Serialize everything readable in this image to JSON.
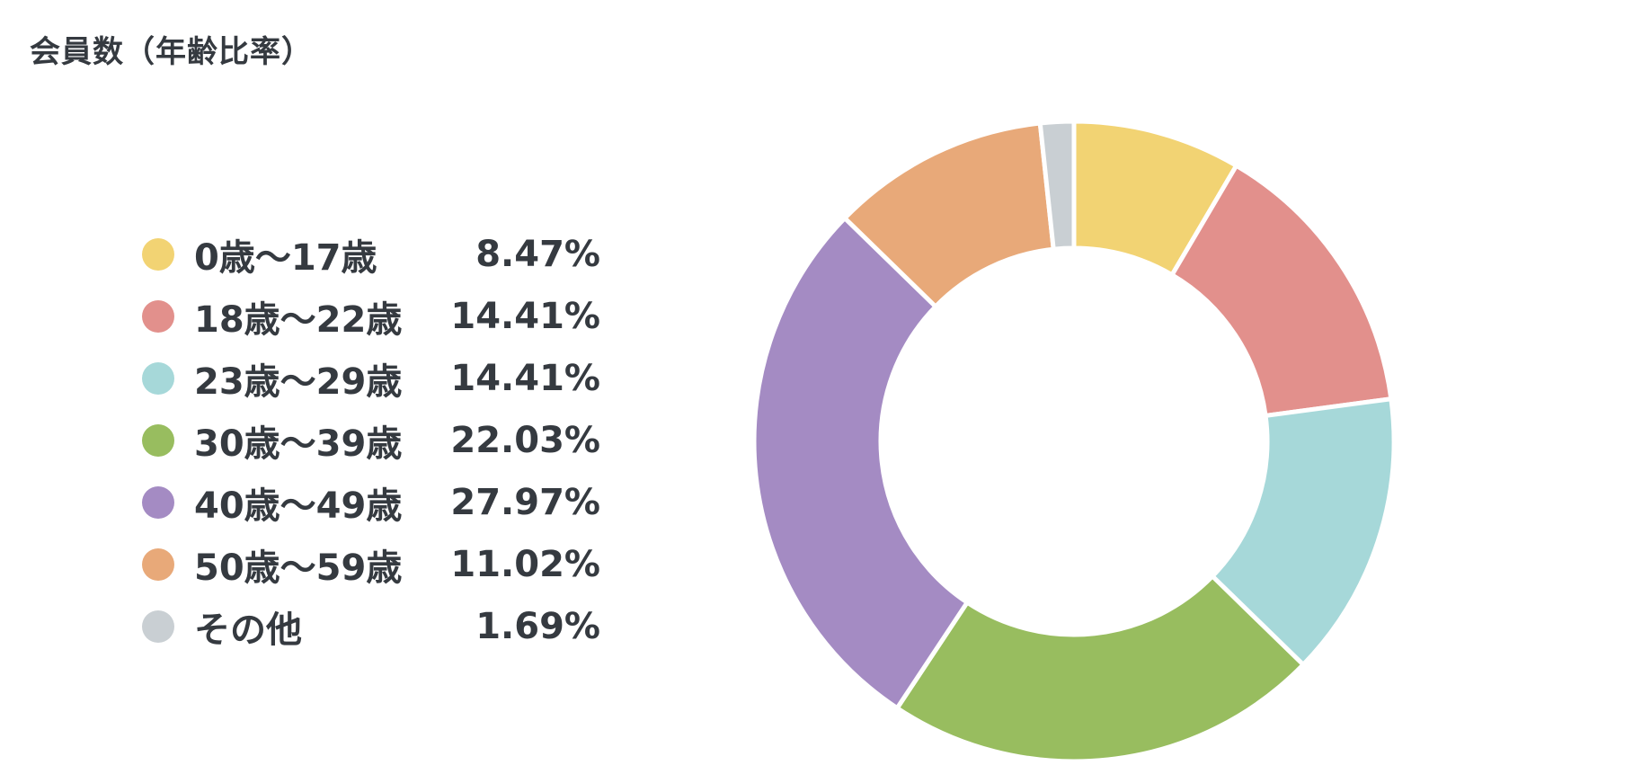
{
  "chart_data": {
    "type": "pie",
    "title": "会員数（年齢比率）",
    "donut": true,
    "legend_position": "left",
    "slices": [
      {
        "label": "0歳〜17歳",
        "value": 8.47,
        "display": "8.47%",
        "color": "#F2D373"
      },
      {
        "label": "18歳〜22歳",
        "value": 14.41,
        "display": "14.41%",
        "color": "#E2908C"
      },
      {
        "label": "23歳〜29歳",
        "value": 14.41,
        "display": "14.41%",
        "color": "#A6D8D9"
      },
      {
        "label": "30歳〜39歳",
        "value": 22.03,
        "display": "22.03%",
        "color": "#98BD5F"
      },
      {
        "label": "40歳〜49歳",
        "value": 27.97,
        "display": "27.97%",
        "color": "#A48BC3"
      },
      {
        "label": "50歳〜59歳",
        "value": 11.02,
        "display": "11.02%",
        "color": "#E8A979"
      },
      {
        "label": "その他",
        "value": 1.69,
        "display": "1.69%",
        "color": "#C9CFD3"
      }
    ]
  }
}
